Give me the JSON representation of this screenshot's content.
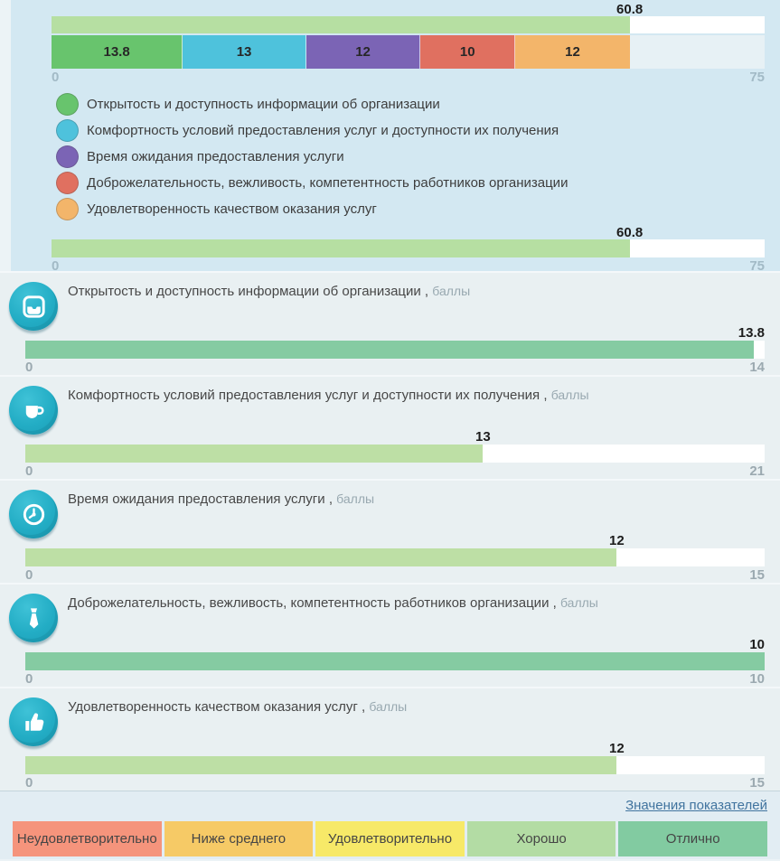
{
  "summary_panel": {
    "total_bar": {
      "value": "60.8",
      "value_num": 60.8,
      "max": "75",
      "max_num": 75,
      "fill_color": "#b6dfa2"
    },
    "stacked_bar": {
      "max_num": 75,
      "segments": [
        {
          "label": "13.8",
          "value": 13.8,
          "color": "#68c46d"
        },
        {
          "label": "13",
          "value": 13,
          "color": "#4ec2dc"
        },
        {
          "label": "12",
          "value": 12,
          "color": "#7b64b5"
        },
        {
          "label": "10",
          "value": 10,
          "color": "#e07060"
        },
        {
          "label": "12",
          "value": 12,
          "color": "#f3b56a"
        }
      ]
    },
    "axis": {
      "min": "0",
      "max": "75"
    },
    "legend": [
      {
        "label": "Открытость и доступность информации об организации",
        "color": "#68c46d"
      },
      {
        "label": "Комфортность условий предоставления услуг и доступности их получения",
        "color": "#4ec2dc"
      },
      {
        "label": "Время ожидания предоставления услуги",
        "color": "#7b64b5"
      },
      {
        "label": "Доброжелательность, вежливость, компетентность работников организации",
        "color": "#e07060"
      },
      {
        "label": "Удовлетворенность качеством оказания услуг",
        "color": "#f3b56a"
      }
    ],
    "overall_bar": {
      "value": "60.8",
      "value_num": 60.8,
      "max": "75",
      "max_num": 75,
      "fill_color": "#b6dfa2"
    }
  },
  "indicators": [
    {
      "icon": "inbox-icon",
      "title": "Открытость и доступность информации об организации",
      "separator": " , ",
      "unit": "баллы",
      "value": "13.8",
      "value_num": 13.8,
      "min": "0",
      "max": "14",
      "max_num": 14,
      "fill_color": "#85cba2"
    },
    {
      "icon": "cup-icon",
      "title": "Комфортность условий предоставления услуг и доступности их получения",
      "separator": " , ",
      "unit": "баллы",
      "value": "13",
      "value_num": 13,
      "min": "0",
      "max": "21",
      "max_num": 21,
      "fill_color": "#bddfa5"
    },
    {
      "icon": "clock-icon",
      "title": "Время ожидания предоставления услуги",
      "separator": " , ",
      "unit": "баллы",
      "value": "12",
      "value_num": 12,
      "min": "0",
      "max": "15",
      "max_num": 15,
      "fill_color": "#bddfa5"
    },
    {
      "icon": "tie-icon",
      "title": "Доброжелательность, вежливость, компетентность работников организации",
      "separator": " , ",
      "unit": "баллы",
      "value": "10",
      "value_num": 10,
      "min": "0",
      "max": "10",
      "max_num": 10,
      "fill_color": "#85cba2"
    },
    {
      "icon": "thumbs-up-icon",
      "title": "Удовлетворенность качеством оказания услуг",
      "separator": " , ",
      "unit": "баллы",
      "value": "12",
      "value_num": 12,
      "min": "0",
      "max": "15",
      "max_num": 15,
      "fill_color": "#bddfa5"
    }
  ],
  "footer": {
    "link_label": "Значения показателей"
  },
  "rating_scale": [
    {
      "label": "Неудовлетворительно",
      "color": "#f5947c"
    },
    {
      "label": "Ниже среднего",
      "color": "#f6ca66"
    },
    {
      "label": "Удовлетворительно",
      "color": "#f7e968"
    },
    {
      "label": "Хорошо",
      "color": "#b3dca4"
    },
    {
      "label": "Отлично",
      "color": "#82cba1"
    }
  ],
  "chart_data": [
    {
      "type": "bar",
      "name": "overall-score-top",
      "values": [
        60.8
      ],
      "xlim": [
        0,
        75
      ],
      "tick_labels": [
        "0",
        "75"
      ],
      "data_labels": [
        "60.8"
      ]
    },
    {
      "type": "bar",
      "name": "criteria-stacked",
      "series": [
        {
          "name": "Открытость и доступность информации об организации",
          "values": [
            13.8
          ]
        },
        {
          "name": "Комфортность условий предоставления услуг и доступности их получения",
          "values": [
            13
          ]
        },
        {
          "name": "Время ожидания предоставления услуги",
          "values": [
            12
          ]
        },
        {
          "name": "Доброжелательность, вежливость, компетентность работников организации",
          "values": [
            10
          ]
        },
        {
          "name": "Удовлетворенность качеством оказания услуг",
          "values": [
            12
          ]
        }
      ],
      "total": 60.8,
      "xlim": [
        0,
        75
      ],
      "legend_position": "below",
      "grid": false
    },
    {
      "type": "bar",
      "name": "overall-score-repeat",
      "values": [
        60.8
      ],
      "xlim": [
        0,
        75
      ],
      "tick_labels": [
        "0",
        "75"
      ],
      "data_labels": [
        "60.8"
      ]
    },
    {
      "type": "bar",
      "name": "indicator-scores",
      "categories": [
        "Открытость и доступность информации об организации",
        "Комфортность условий предоставления услуг и доступности их получения",
        "Время ожидания предоставления услуги",
        "Доброжелательность, вежливость, компетентность работников организации",
        "Удовлетворенность качеством оказания услуг"
      ],
      "values": [
        13.8,
        13,
        12,
        10,
        12
      ],
      "axis_max": [
        14,
        21,
        15,
        10,
        15
      ],
      "ylabel": "баллы",
      "grid": false
    }
  ]
}
